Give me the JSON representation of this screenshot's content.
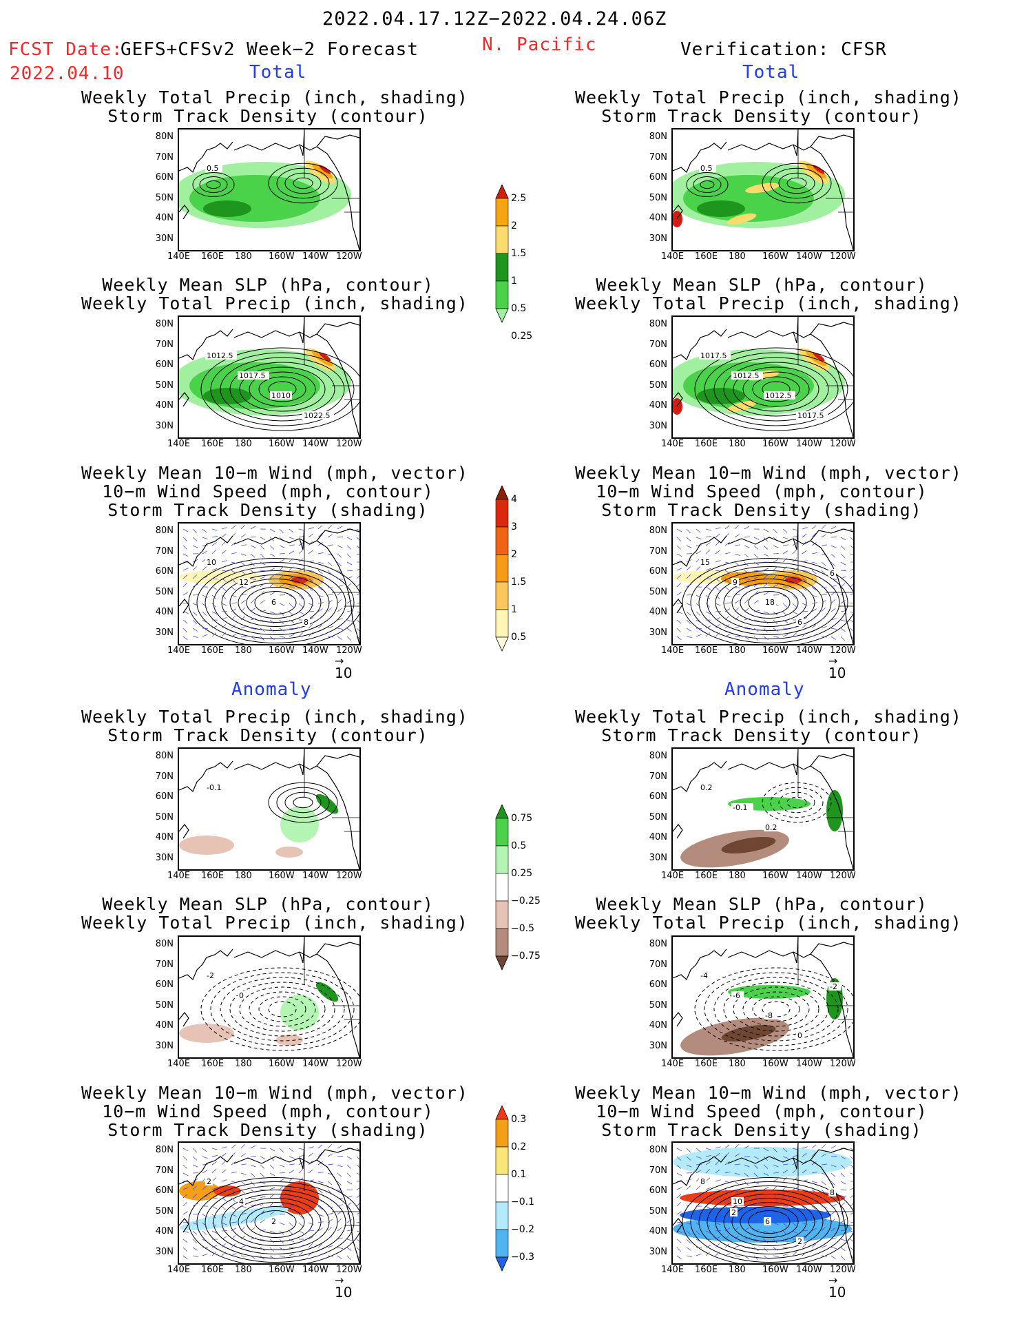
{
  "header": {
    "date_range": "2022.04.17.12Z−2022.04.24.06Z",
    "fcst_label": "FCST Date:",
    "model": "GEFS+CFSv2 Week−2 Forecast",
    "region": "N. Pacific",
    "fcst_date": "2022.04.10",
    "verification": "Verification: CFSR"
  },
  "sections": {
    "total": "Total",
    "anomaly": "Anomaly"
  },
  "panel_titles": {
    "precip_storm": [
      "Weekly Total Precip (inch, shading)",
      "Storm Track Density (contour)"
    ],
    "slp_precip": [
      "Weekly Mean SLP (hPa, contour)",
      "Weekly Total Precip (inch, shading)"
    ],
    "wind_storm": [
      "Weekly Mean 10−m Wind (mph, vector)",
      "10−m Wind Speed (mph, contour)",
      "Storm Track Density (shading)"
    ]
  },
  "axes": {
    "lat_ticks": [
      "80N",
      "70N",
      "60N",
      "50N",
      "40N",
      "30N"
    ],
    "lon_ticks": [
      "140E",
      "160E",
      "180",
      "160W",
      "140W",
      "120W"
    ]
  },
  "vector_ref": "10",
  "contour_labels": {
    "fc_total_precip": [
      "0.5"
    ],
    "ob_total_precip": [
      "0.5"
    ],
    "fc_total_slp": [
      "1012.5",
      "1017.5",
      "1010",
      "1022.5"
    ],
    "ob_total_slp": [
      "1017.5",
      "1012.5",
      "1012.5",
      "1017.5"
    ],
    "fc_total_wind": [
      "10",
      "12",
      "6",
      "8"
    ],
    "ob_total_wind": [
      "15",
      "9",
      "18",
      "6",
      "6"
    ],
    "fc_anom_precip": [
      "-0.1"
    ],
    "ob_anom_precip": [
      "0.2",
      "-0.1",
      "0.2"
    ],
    "fc_anom_slp": [
      "-2",
      "0"
    ],
    "ob_anom_slp": [
      "-4",
      "-6",
      "-8",
      "0",
      "-2"
    ],
    "fc_anom_wind": [
      "2",
      "4",
      "2"
    ],
    "ob_anom_wind": [
      "8",
      "10",
      "6",
      "2",
      "8",
      "2"
    ]
  },
  "colorbars": {
    "total_precip": {
      "labels": [
        "2.5",
        "2",
        "1.5",
        "1",
        "0.5",
        "0.25"
      ],
      "colors": [
        "#d21e0f",
        "#f5a50f",
        "#fadc6e",
        "#1e961e",
        "#4bd24b",
        "#a0f0a0"
      ]
    },
    "storm_density": {
      "labels": [
        "4",
        "3",
        "2",
        "1.5",
        "1",
        "0.5"
      ],
      "colors": [
        "#8c1e0a",
        "#dc280f",
        "#f06414",
        "#f59b14",
        "#fac85a",
        "#fff5b4",
        "#fffadc"
      ]
    },
    "anom_precip": {
      "labels": [
        "0.75",
        "0.5",
        "0.25",
        "−0.25",
        "−0.5",
        "−0.75"
      ],
      "colors": [
        "#1e961e",
        "#4bd24b",
        "#b4f5b4",
        "#ffffff",
        "#e6c3b4",
        "#b48c7d",
        "#6e4632"
      ]
    },
    "anom_storm": {
      "labels": [
        "0.3",
        "0.2",
        "0.1",
        "−0.1",
        "−0.2",
        "−0.3"
      ],
      "colors": [
        "#f03c14",
        "#f5a014",
        "#fae678",
        "#ffffff",
        "#b4ebfa",
        "#50b4f0",
        "#1e64e6"
      ]
    }
  }
}
